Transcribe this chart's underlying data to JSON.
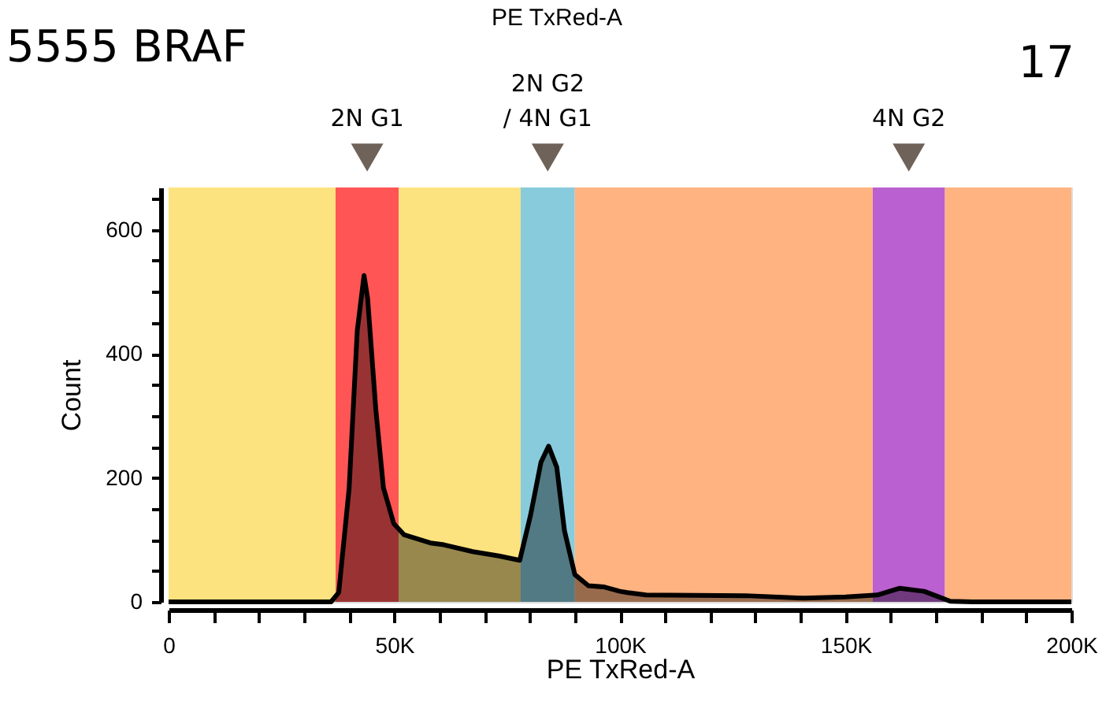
{
  "chart_data": {
    "type": "area",
    "title": "5555 BRAF",
    "xlabel": "PE TxRed-A",
    "ylabel": "Count",
    "annotations": [
      "PE TxRed-A",
      "17"
    ],
    "x": [
      0,
      36000,
      37700,
      40000,
      41800,
      43300,
      44100,
      45900,
      47600,
      49900,
      52200,
      58000,
      61000,
      67400,
      73200,
      77800,
      80200,
      82500,
      84200,
      86000,
      87700,
      90000,
      93000,
      96500,
      100000,
      101700,
      105800,
      127800,
      140700,
      150000,
      157000,
      162000,
      167400,
      173200,
      178000,
      200000
    ],
    "series": [
      {
        "color": "#000000",
        "values": [
          0,
          0,
          15,
          183,
          437,
          526,
          489,
          311,
          184,
          126,
          108,
          95,
          92,
          81,
          74,
          67,
          140,
          225,
          251,
          217,
          115,
          44,
          26,
          24,
          17,
          15,
          11,
          10,
          6,
          8,
          11,
          22,
          17,
          1,
          0,
          0
        ]
      }
    ],
    "bands": [
      {
        "axis": "x",
        "from": 0,
        "to": 37000,
        "color": "#fde380"
      },
      {
        "axis": "x",
        "from": 37000,
        "to": 51000,
        "color": "#ff5555",
        "label": "2N G1"
      },
      {
        "axis": "x",
        "from": 51000,
        "to": 78000,
        "color": "#fde380"
      },
      {
        "axis": "x",
        "from": 78000,
        "to": 90000,
        "color": "#88cbdc",
        "label": "2N G2\n/ 4N G1"
      },
      {
        "axis": "x",
        "from": 90000,
        "to": 156000,
        "color": "#ffb380"
      },
      {
        "axis": "x",
        "from": 156000,
        "to": 172000,
        "color": "#bb60d0",
        "label": "4N G2"
      },
      {
        "axis": "x",
        "from": 172000,
        "to": 200000,
        "color": "#ffb380"
      }
    ],
    "xlim": [
      0,
      200000
    ],
    "xticks": [
      0,
      {
        "value": 10000,
        "label": null
      },
      {
        "value": 20000,
        "label": null
      },
      {
        "value": 30000,
        "label": null
      },
      {
        "value": 40000,
        "label": null
      },
      {
        "value": 50000,
        "label": "50K"
      },
      {
        "value": 60000,
        "label": null
      },
      {
        "value": 70000,
        "label": null
      },
      {
        "value": 80000,
        "label": null
      },
      {
        "value": 90000,
        "label": null
      },
      {
        "value": 100000,
        "label": "100K"
      },
      {
        "value": 110000,
        "label": null
      },
      {
        "value": 120000,
        "label": null
      },
      {
        "value": 130000,
        "label": null
      },
      {
        "value": 140000,
        "label": null
      },
      {
        "value": 150000,
        "label": "150K"
      },
      {
        "value": 160000,
        "label": null
      },
      {
        "value": 170000,
        "label": null
      },
      {
        "value": 180000,
        "label": null
      },
      {
        "value": 190000,
        "label": null
      },
      {
        "value": 200000,
        "label": "200K"
      }
    ],
    "ylim": [
      0,
      668
    ],
    "yticks": [
      0,
      {
        "value": 50,
        "label": null
      },
      {
        "value": 100,
        "label": null
      },
      {
        "value": 150,
        "label": null
      },
      200,
      {
        "value": 250,
        "label": null
      },
      {
        "value": 300,
        "label": null
      },
      {
        "value": 350,
        "label": null
      },
      400,
      {
        "value": 450,
        "label": null
      },
      {
        "value": 500,
        "label": null
      },
      {
        "value": 550,
        "label": null
      },
      600,
      {
        "value": 650,
        "label": null
      }
    ],
    "grid": false
  }
}
